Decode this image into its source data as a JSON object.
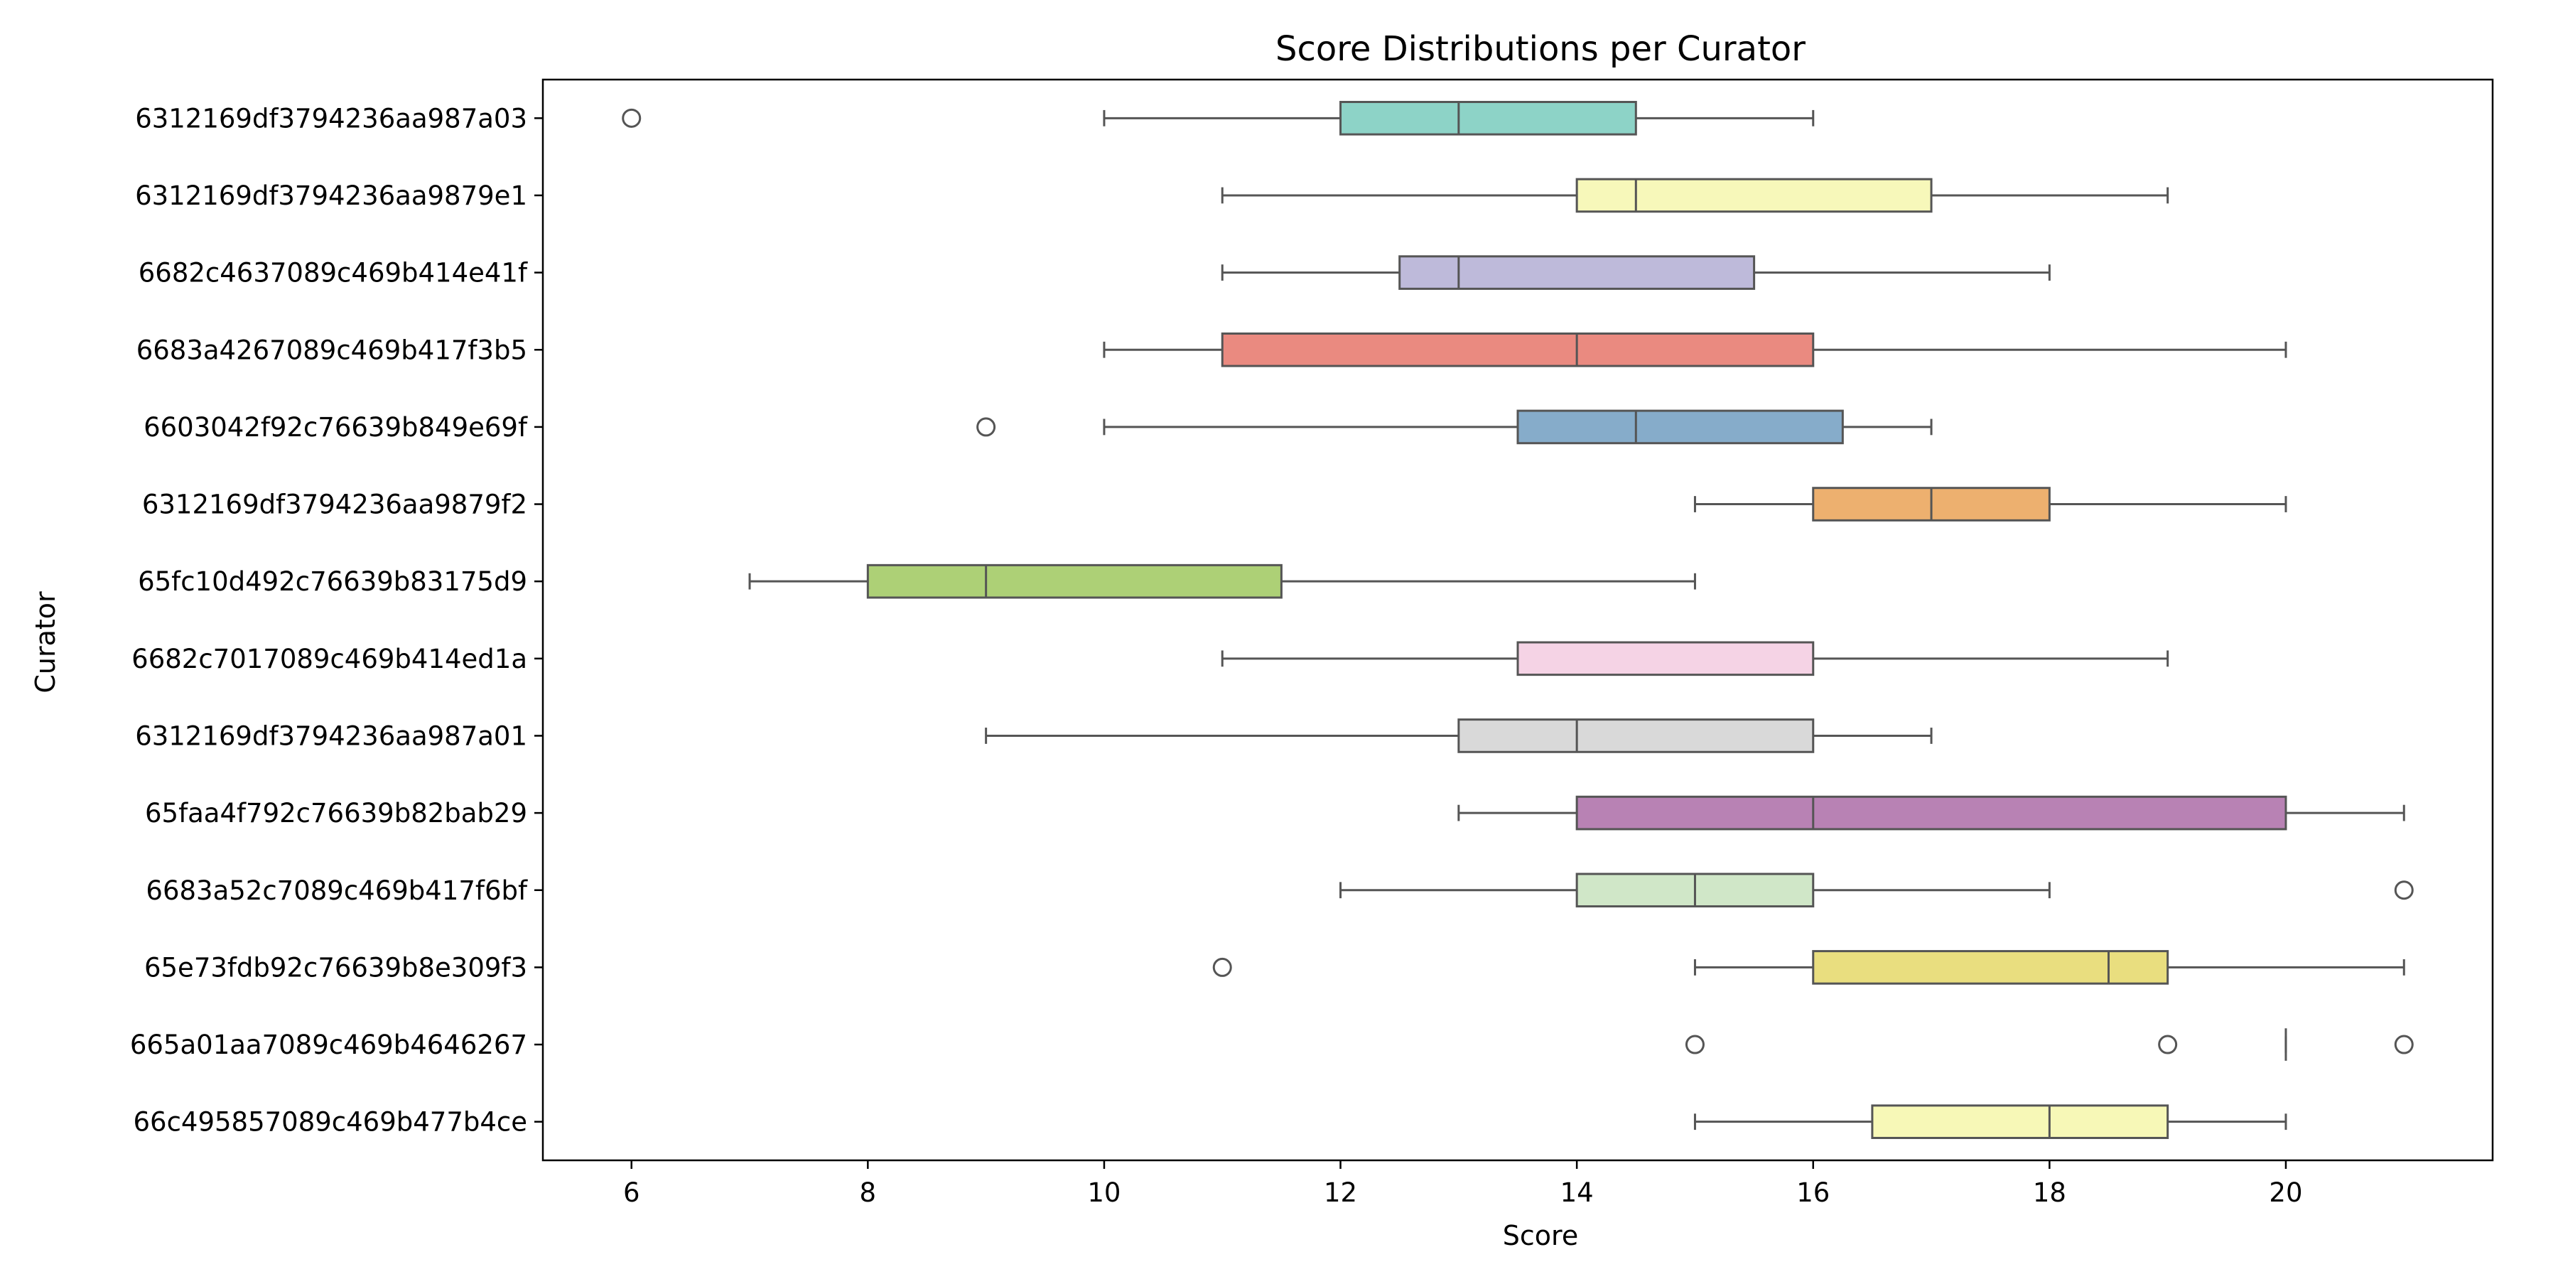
{
  "chart_data": {
    "type": "boxplot",
    "orientation": "horizontal",
    "title": "Score Distributions per Curator",
    "xlabel": "Score",
    "ylabel": "Curator",
    "xlim": [
      5.25,
      21.75
    ],
    "x_ticks": [
      6,
      8,
      10,
      12,
      14,
      16,
      18,
      20
    ],
    "grid": false,
    "legend": "none",
    "series": [
      {
        "category": "6312169df3794236aa987a03",
        "color": "#8dd3c7",
        "whisker_low": 10,
        "q1": 12,
        "median": 13,
        "q3": 14.5,
        "whisker_high": 16,
        "outliers": [
          6
        ]
      },
      {
        "category": "6312169df3794236aa9879e1",
        "color": "#f7f8ba",
        "whisker_low": 11,
        "q1": 14,
        "median": 14.5,
        "q3": 17,
        "whisker_high": 19,
        "outliers": []
      },
      {
        "category": "6682c4637089c469b414e41f",
        "color": "#bebada",
        "whisker_low": 11,
        "q1": 12.5,
        "median": 13,
        "q3": 15.5,
        "whisker_high": 18,
        "outliers": []
      },
      {
        "category": "6683a4267089c469b417f3b5",
        "color": "#ea8a80",
        "whisker_low": 10,
        "q1": 11,
        "median": 14,
        "q3": 16,
        "whisker_high": 20,
        "outliers": []
      },
      {
        "category": "6603042f92c76639b849e69f",
        "color": "#86acca",
        "whisker_low": 10,
        "q1": 13.5,
        "median": 14.5,
        "q3": 16.25,
        "whisker_high": 17,
        "outliers": [
          9
        ]
      },
      {
        "category": "6312169df3794236aa9879f2",
        "color": "#edb06f",
        "whisker_low": 15,
        "q1": 16,
        "median": 17,
        "q3": 18,
        "whisker_high": 20,
        "outliers": []
      },
      {
        "category": "65fc10d492c76639b83175d9",
        "color": "#add076",
        "whisker_low": 7,
        "q1": 8,
        "median": 9,
        "q3": 11.5,
        "whisker_high": 15,
        "outliers": []
      },
      {
        "category": "6682c7017089c469b414ed1a",
        "color": "#f5d3e5",
        "whisker_low": 11,
        "q1": 13.5,
        "median": 13.5,
        "q3": 16,
        "whisker_high": 19,
        "outliers": []
      },
      {
        "category": "6312169df3794236aa987a01",
        "color": "#d9d9d9",
        "whisker_low": 9,
        "q1": 13,
        "median": 14,
        "q3": 16,
        "whisker_high": 17,
        "outliers": []
      },
      {
        "category": "65faa4f792c76639b82bab29",
        "color": "#b882b4",
        "whisker_low": 13,
        "q1": 14,
        "median": 16,
        "q3": 20,
        "whisker_high": 21,
        "outliers": []
      },
      {
        "category": "6683a52c7089c469b417f6bf",
        "color": "#d0e7c8",
        "whisker_low": 12,
        "q1": 14,
        "median": 15,
        "q3": 16,
        "whisker_high": 18,
        "outliers": [
          21
        ]
      },
      {
        "category": "65e73fdb92c76639b8e309f3",
        "color": "#e9de7f",
        "whisker_low": 15,
        "q1": 16,
        "median": 18.5,
        "q3": 19,
        "whisker_high": 21,
        "outliers": [
          11
        ]
      },
      {
        "category": "665a01aa7089c469b4646267",
        "color": "#f7f6b3",
        "whisker_low": 20,
        "q1": 20,
        "median": 20,
        "q3": 20,
        "whisker_high": 20,
        "outliers": [
          15,
          19,
          21
        ]
      },
      {
        "category": "66c495857089c469b477b4ce",
        "color": "#f7f8b7",
        "whisker_low": 15,
        "q1": 16.5,
        "median": 18,
        "q3": 19,
        "whisker_high": 20,
        "outliers": []
      }
    ]
  }
}
